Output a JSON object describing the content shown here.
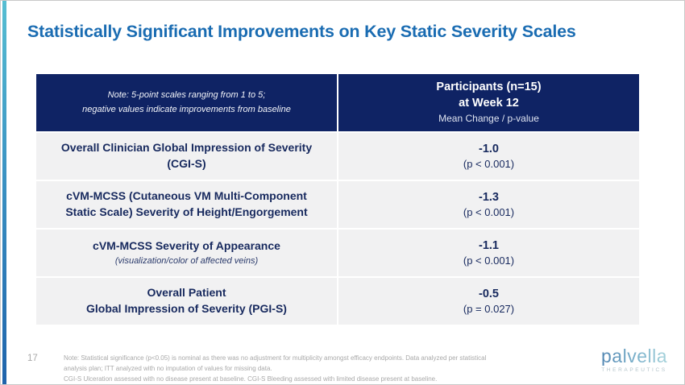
{
  "slide": {
    "title": "Statistically Significant Improvements on Key Static Severity Scales",
    "page_number": "17"
  },
  "table": {
    "header": {
      "note_line1": "Note: 5-point scales ranging from 1 to 5;",
      "note_line2": "negative values indicate improvements from baseline",
      "participants_line1": "Participants (n=15)",
      "participants_line2": "at Week 12",
      "participants_line3": "Mean Change / p-value"
    },
    "rows": [
      {
        "label_line1": "Overall Clinician Global Impression of Severity",
        "label_line2": "(CGI-S)",
        "value": "-1.0",
        "p_value": "(p < 0.001)"
      },
      {
        "label_line1": "cVM-MCSS (Cutaneous VM Multi-Component",
        "label_line2": "Static Scale) Severity of Height/Engorgement",
        "value": "-1.3",
        "p_value": "(p < 0.001)"
      },
      {
        "label_line1": "cVM-MCSS Severity of Appearance",
        "label_line2": "(visualization/color of affected veins)",
        "value": "-1.1",
        "p_value": "(p < 0.001)"
      },
      {
        "label_line1": "Overall Patient",
        "label_line2": "Global Impression of Severity (PGI-S)",
        "value": "-0.5",
        "p_value": "(p = 0.027)"
      }
    ]
  },
  "footnotes": {
    "line1": "Note: Statistical significance (p<0.05) is nominal as there was no adjustment for multiplicity amongst efficacy endpoints. Data analyzed per statistical",
    "line2": "analysis plan; ITT analyzed with no imputation of values for missing data.",
    "line3": "CGI-S Ulceration assessed with no disease present at baseline. CGI-S Bleeding assessed with limited disease present at baseline."
  },
  "logo": {
    "name": "palvella",
    "tagline": "THERAPEUTICS"
  },
  "colors": {
    "title_blue": "#1a6cb2",
    "header_navy": "#0f2364",
    "row_gray": "#f1f1f2",
    "cell_text_navy": "#17295e",
    "footnote_gray": "#a9a9a9",
    "accent_bar_top": "#56bed2",
    "accent_bar_bottom": "#1e63ab"
  }
}
